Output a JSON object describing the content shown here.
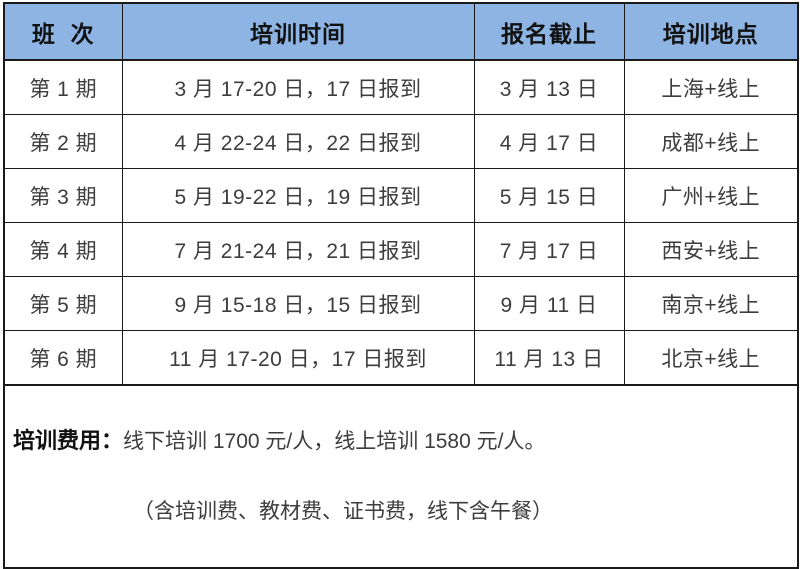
{
  "table": {
    "headers": [
      "班  次",
      "培训时间",
      "报名截止",
      "培训地点"
    ],
    "rows": [
      {
        "term": "第 1 期",
        "time": "3 月 17-20 日，17 日报到",
        "deadline": "3 月 13 日",
        "location": "上海+线上"
      },
      {
        "term": "第 2 期",
        "time": "4 月 22-24 日，22 日报到",
        "deadline": "4 月 17 日",
        "location": "成都+线上"
      },
      {
        "term": "第 3 期",
        "time": "5 月 19-22 日，19 日报到",
        "deadline": "5 月 15 日",
        "location": "广州+线上"
      },
      {
        "term": "第 4 期",
        "time": "7 月 21-24 日，21 日报到",
        "deadline": "7 月 17 日",
        "location": "西安+线上"
      },
      {
        "term": "第 5 期",
        "time": "9 月 15-18 日，15 日报到",
        "deadline": "9 月 11 日",
        "location": "南京+线上"
      },
      {
        "term": "第 6 期",
        "time": "11 月 17-20 日，17 日报到",
        "deadline": "11 月 13 日",
        "location": "北京+线上"
      }
    ],
    "footer": {
      "label": "培训费用：",
      "line1": "线下培训 1700 元/人，线上培训 1580 元/人。",
      "line2": "（含培训费、教材费、证书费，线下含午餐）"
    }
  },
  "colors": {
    "header_bg": "#8DB4E2",
    "border": "#1A1A1A",
    "header_text": "#111111",
    "body_text": "#3D3D3D"
  }
}
